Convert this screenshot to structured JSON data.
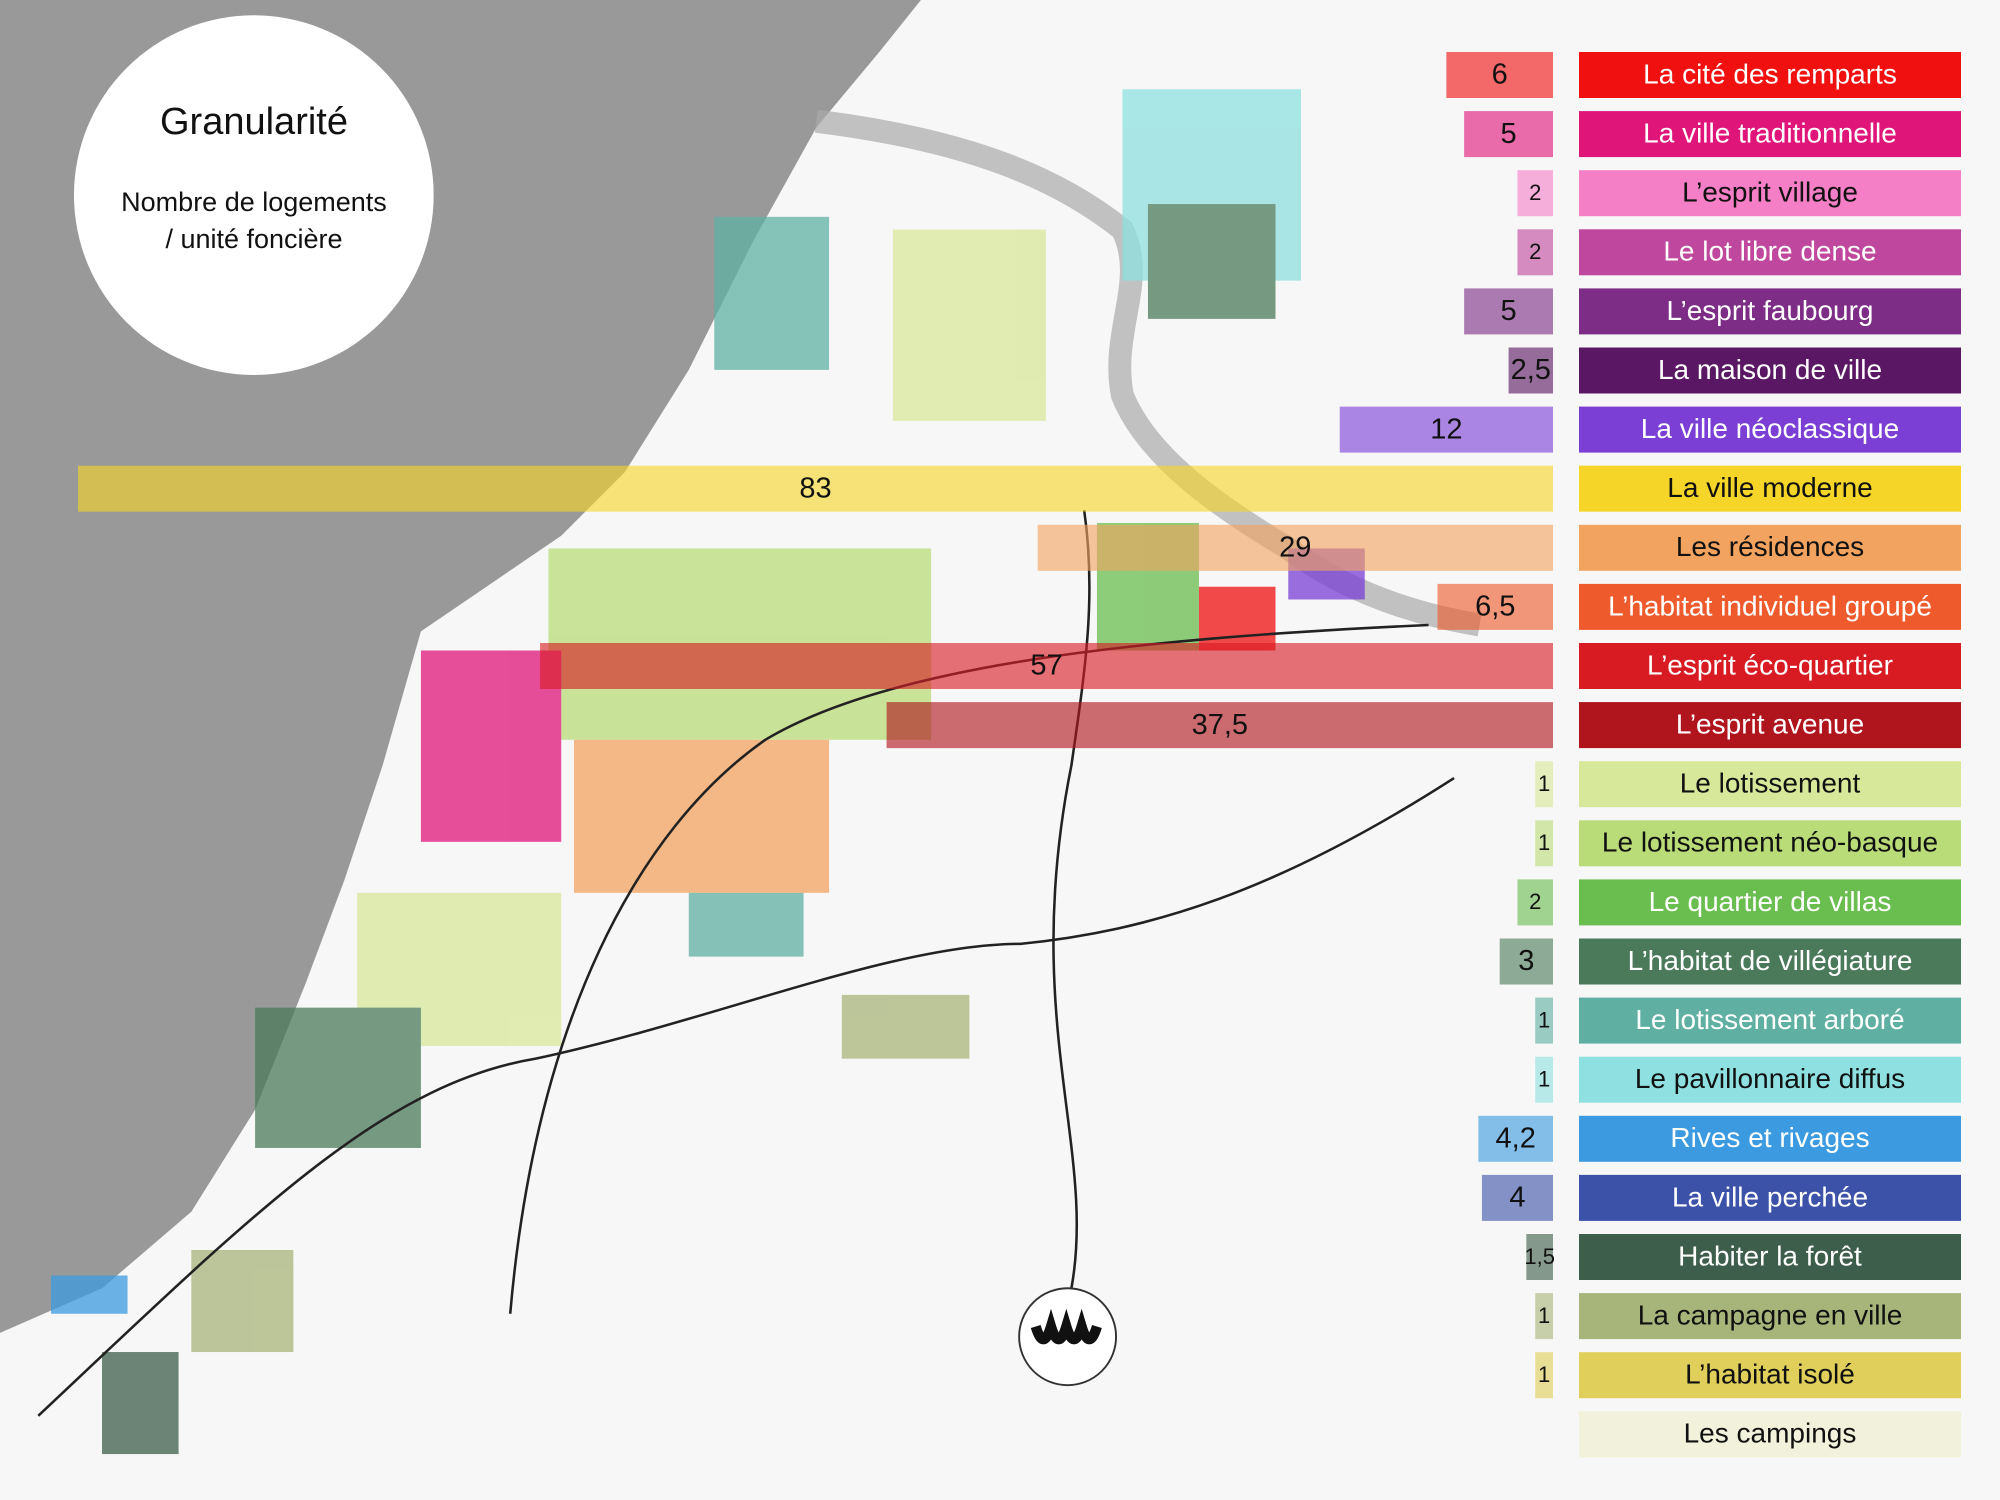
{
  "chart_data": {
    "type": "bar",
    "orientation": "horizontal",
    "title": "Granularité",
    "subtitle": "Nombre de logements / unité foncière",
    "categories": [
      "La cité des remparts",
      "La ville traditionnelle",
      "L’esprit village",
      "Le lot libre dense",
      "L’esprit faubourg",
      "La maison de ville",
      "La ville néoclassique",
      "La ville moderne",
      "Les résidences",
      "L’habitat individuel groupé",
      "L’esprit éco-quartier",
      "L’esprit avenue",
      "Le lotissement",
      "Le lotissement néo-basque",
      "Le quartier de villas",
      "L’habitat de villégiature",
      "Le lotissement arboré",
      "Le pavillonnaire  diffus",
      "Rives et rivages",
      "La ville perchée",
      "Habiter la forêt",
      "La campagne en ville",
      "L’habitat isolé",
      "Les campings"
    ],
    "values": [
      6,
      5,
      2,
      2,
      5,
      2.5,
      12,
      83,
      29,
      6.5,
      57,
      37.5,
      1,
      1,
      2,
      3,
      1,
      1,
      4.2,
      4,
      1.5,
      1,
      1,
      null
    ],
    "value_labels": [
      "6",
      "5",
      "2",
      "2",
      "5",
      "2,5",
      "12",
      "83",
      "29",
      "6,5",
      "57",
      "37,5",
      "1",
      "1",
      "2",
      "3",
      "1",
      "1",
      "4,2",
      "4",
      "1,5",
      "1",
      "1",
      null
    ],
    "colors": [
      "#f01010",
      "#e0157a",
      "#f47fc6",
      "#c0479e",
      "#7d2d86",
      "#5a1763",
      "#7b3fd6",
      "#f5d527",
      "#f2a35f",
      "#ee5a2c",
      "#d81b23",
      "#b0141c",
      "#d8e89a",
      "#b9dc78",
      "#6abd4f",
      "#4a7a5a",
      "#5fb0a2",
      "#8fe0e0",
      "#3c9be0",
      "#3b52a8",
      "#3d5e4a",
      "#a8b57a",
      "#e0cf5a",
      "#f2f2dc"
    ]
  }
}
